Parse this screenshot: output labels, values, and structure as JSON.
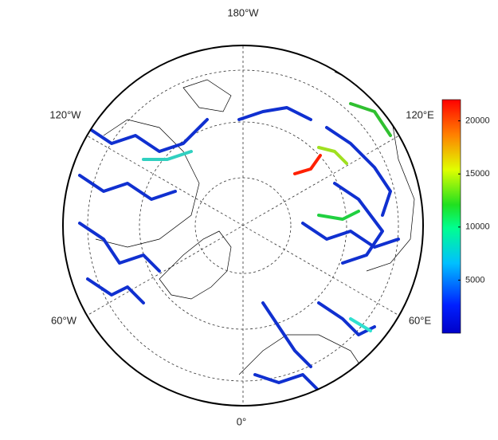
{
  "map": {
    "labels": {
      "top": "180°W",
      "upper_left": "120°W",
      "upper_right": "120°E",
      "lower_left": "60°W",
      "lower_right": "60°E",
      "bottom": "0°"
    }
  },
  "colorbar": {
    "lim": [
      0,
      22000
    ],
    "ticks": [
      5000,
      10000,
      15000,
      20000
    ]
  }
}
